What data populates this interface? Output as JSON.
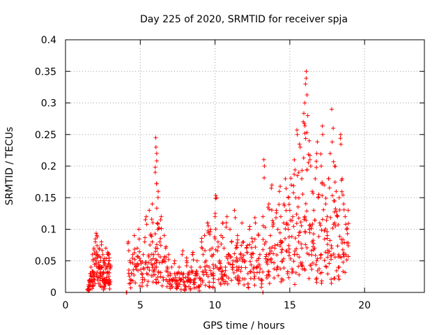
{
  "chart_data": {
    "type": "scatter",
    "title": "Day 225 of 2020, SRMTID for receiver spja",
    "xlabel": "GPS time / hours",
    "ylabel": "SRMTID / TECUs",
    "xlim": [
      0,
      24
    ],
    "ylim": [
      0,
      0.4
    ],
    "x_ticks": [
      0,
      5,
      10,
      15,
      20
    ],
    "y_ticks": [
      0,
      0.05,
      0.1,
      0.15,
      0.2,
      0.25,
      0.3,
      0.35,
      0.4
    ],
    "x_tick_labels": [
      "0",
      "5",
      "10",
      "15",
      "20"
    ],
    "y_tick_labels": [
      "0",
      "0.05",
      "0.1",
      "0.15",
      "0.2",
      "0.25",
      "0.3",
      "0.35",
      "0.4"
    ],
    "grid": true,
    "marker": "+",
    "marker_color": "#ff0000",
    "series": [
      {
        "name": "SRMTID",
        "x": [
          1.5,
          1.55,
          1.6,
          1.65,
          1.7,
          1.75,
          1.8,
          1.85,
          1.9,
          1.95,
          2.0,
          2.05,
          2.1,
          2.15,
          2.2,
          2.25,
          2.3,
          2.35,
          2.4,
          2.45,
          2.5,
          2.55,
          2.6,
          2.65,
          2.7,
          2.75,
          2.8,
          2.85,
          2.9,
          2.95,
          3.0,
          4.1,
          4.2,
          4.3,
          4.4,
          4.5,
          4.6,
          4.7,
          4.8,
          4.9,
          5.0,
          5.1,
          5.2,
          5.3,
          5.4,
          5.5,
          5.6,
          5.7,
          5.8,
          5.9,
          6.0,
          6.05,
          6.1,
          6.15,
          6.2,
          6.3,
          6.4,
          6.5,
          6.6,
          6.7,
          6.8,
          6.9,
          7.0,
          7.1,
          7.2,
          7.3,
          7.4,
          7.5,
          7.6,
          7.7,
          7.8,
          7.9,
          8.0,
          8.1,
          8.2,
          8.3,
          8.4,
          8.5,
          8.6,
          8.7,
          8.8,
          8.9,
          9.0,
          9.1,
          9.2,
          9.3,
          9.4,
          9.5,
          9.6,
          9.7,
          9.8,
          9.9,
          10.0,
          10.1,
          10.2,
          10.3,
          10.4,
          10.5,
          10.6,
          10.7,
          10.8,
          10.9,
          11.0,
          11.1,
          11.2,
          11.3,
          11.4,
          11.5,
          11.6,
          11.7,
          11.8,
          11.9,
          12.0,
          12.1,
          12.2,
          12.3,
          12.4,
          12.5,
          12.6,
          12.7,
          12.8,
          12.9,
          13.0,
          13.1,
          13.2,
          13.3,
          13.4,
          13.5,
          13.6,
          13.7,
          13.8,
          13.9,
          14.0,
          14.1,
          14.2,
          14.3,
          14.4,
          14.5,
          14.6,
          14.7,
          14.8,
          14.9,
          15.0,
          15.1,
          15.2,
          15.3,
          15.4,
          15.5,
          15.6,
          15.7,
          15.8,
          15.9,
          16.0,
          16.05,
          16.1,
          16.2,
          16.3,
          16.4,
          16.5,
          16.6,
          16.7,
          16.8,
          16.9,
          17.0,
          17.1,
          17.2,
          17.3,
          17.4,
          17.5,
          17.6,
          17.7,
          17.8,
          17.9,
          18.0,
          18.1,
          18.2,
          18.3,
          18.4,
          18.5,
          18.6,
          18.7,
          18.8,
          18.9,
          13.2,
          2.3,
          2.6,
          2.9,
          5.8,
          6.2,
          6.0,
          6.1,
          7.5,
          8.2,
          9.9,
          10.4,
          11.5,
          13.6,
          14.4,
          14.9,
          15.3,
          15.6,
          15.8,
          16.0,
          16.3,
          16.5,
          16.8,
          17.1,
          17.5,
          17.8,
          18.0,
          18.3,
          18.6
        ],
        "y": [
          0.005,
          0.01,
          0.02,
          0.03,
          0.04,
          0.02,
          0.06,
          0.05,
          0.07,
          0.03,
          0.08,
          0.05,
          0.09,
          0.06,
          0.04,
          0.07,
          0.03,
          0.05,
          0.08,
          0.04,
          0.06,
          0.03,
          0.05,
          0.02,
          0.07,
          0.04,
          0.03,
          0.06,
          0.05,
          0.02,
          0.04,
          0.0,
          0.08,
          0.05,
          0.03,
          0.06,
          0.09,
          0.04,
          0.07,
          0.1,
          0.05,
          0.03,
          0.06,
          0.08,
          0.12,
          0.04,
          0.13,
          0.09,
          0.14,
          0.06,
          0.19,
          0.23,
          0.22,
          0.11,
          0.16,
          0.08,
          0.12,
          0.05,
          0.09,
          0.07,
          0.04,
          0.06,
          0.03,
          0.04,
          0.02,
          0.05,
          0.03,
          0.01,
          0.04,
          0.02,
          0.06,
          0.03,
          0.01,
          0.05,
          0.03,
          0.02,
          0.04,
          0.06,
          0.02,
          0.03,
          0.05,
          0.01,
          0.04,
          0.08,
          0.06,
          0.09,
          0.05,
          0.11,
          0.04,
          0.1,
          0.07,
          0.06,
          0.12,
          0.15,
          0.08,
          0.05,
          0.09,
          0.11,
          0.07,
          0.04,
          0.12,
          0.06,
          0.1,
          0.08,
          0.05,
          0.13,
          0.07,
          0.09,
          0.04,
          0.06,
          0.11,
          0.08,
          0.05,
          0.07,
          0.03,
          0.1,
          0.06,
          0.08,
          0.04,
          0.11,
          0.05,
          0.09,
          0.06,
          0.02,
          0.12,
          0.2,
          0.08,
          0.05,
          0.14,
          0.09,
          0.17,
          0.11,
          0.07,
          0.13,
          0.1,
          0.16,
          0.12,
          0.08,
          0.14,
          0.18,
          0.11,
          0.15,
          0.13,
          0.17,
          0.12,
          0.21,
          0.15,
          0.25,
          0.19,
          0.23,
          0.18,
          0.27,
          0.3,
          0.33,
          0.35,
          0.28,
          0.24,
          0.2,
          0.16,
          0.13,
          0.18,
          0.22,
          0.15,
          0.11,
          0.2,
          0.25,
          0.17,
          0.14,
          0.12,
          0.18,
          0.22,
          0.29,
          0.26,
          0.2,
          0.16,
          0.12,
          0.15,
          0.25,
          0.18,
          0.14,
          0.12,
          0.1,
          0.13,
          0.0,
          0.04,
          0.02,
          0.06,
          0.08,
          0.06,
          0.04,
          0.05,
          0.03,
          0.02,
          0.03,
          0.04,
          0.05,
          0.06,
          0.08,
          0.1,
          0.06,
          0.09,
          0.07,
          0.12,
          0.1,
          0.08,
          0.05,
          0.06,
          0.09,
          0.07,
          0.11,
          0.04,
          0.06
        ]
      }
    ]
  }
}
